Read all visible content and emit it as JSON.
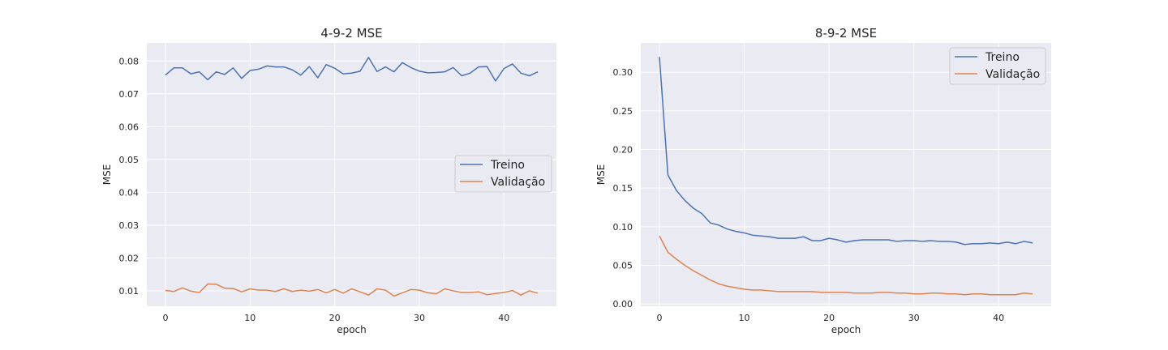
{
  "colors": {
    "panel_bg": "#EAEAF2",
    "grid": "#FFFFFF",
    "train": "#4C72B0",
    "val": "#DD8452",
    "legend_bg": "#EAEAF2",
    "legend_border": "#CCCCCC"
  },
  "chart_data": [
    {
      "type": "line",
      "title": "4-9-2 MSE",
      "xlabel": "epoch",
      "ylabel": "MSE",
      "xlim": [
        -2.2,
        46.2
      ],
      "ylim": [
        0.0053,
        0.0855
      ],
      "xticks": [
        0,
        10,
        20,
        30,
        40
      ],
      "yticks": [
        0.01,
        0.02,
        0.03,
        0.04,
        0.05,
        0.06,
        0.07,
        0.08
      ],
      "ytick_labels": [
        "0.01",
        "0.02",
        "0.03",
        "0.04",
        "0.05",
        "0.06",
        "0.07",
        "0.08"
      ],
      "grid": true,
      "legend": "center-right",
      "x": [
        0,
        1,
        2,
        3,
        4,
        5,
        6,
        7,
        8,
        9,
        10,
        11,
        12,
        13,
        14,
        15,
        16,
        17,
        18,
        19,
        20,
        21,
        22,
        23,
        24,
        25,
        26,
        27,
        28,
        29,
        30,
        31,
        32,
        33,
        34,
        35,
        36,
        37,
        38,
        39,
        40,
        41,
        42,
        43,
        44
      ],
      "series": [
        {
          "name": "Treino",
          "color": "#4C72B0",
          "values": [
            0.0757,
            0.0779,
            0.0779,
            0.0761,
            0.0767,
            0.0743,
            0.0767,
            0.0759,
            0.0779,
            0.0747,
            0.0771,
            0.0775,
            0.0785,
            0.0782,
            0.0782,
            0.0773,
            0.0757,
            0.0783,
            0.0749,
            0.0789,
            0.0778,
            0.0761,
            0.0763,
            0.0769,
            0.0811,
            0.0768,
            0.0782,
            0.0767,
            0.0795,
            0.078,
            0.0769,
            0.0764,
            0.0765,
            0.0767,
            0.078,
            0.0755,
            0.0763,
            0.0782,
            0.0783,
            0.0739,
            0.0777,
            0.0791,
            0.0763,
            0.0755,
            0.0767
          ]
        },
        {
          "name": "Validação",
          "color": "#DD8452",
          "values": [
            0.0101,
            0.0098,
            0.0109,
            0.0099,
            0.0095,
            0.0121,
            0.012,
            0.0108,
            0.0107,
            0.0097,
            0.0106,
            0.0102,
            0.0102,
            0.0098,
            0.0106,
            0.0098,
            0.0102,
            0.0099,
            0.0104,
            0.0094,
            0.0104,
            0.0093,
            0.0106,
            0.0097,
            0.0087,
            0.0106,
            0.0102,
            0.0084,
            0.0094,
            0.0104,
            0.0102,
            0.0094,
            0.0091,
            0.0106,
            0.01,
            0.0095,
            0.0095,
            0.0097,
            0.0088,
            0.0092,
            0.0095,
            0.0101,
            0.0087,
            0.01,
            0.0093
          ]
        }
      ]
    },
    {
      "type": "line",
      "title": "8-9-2 MSE",
      "xlabel": "epoch",
      "ylabel": "MSE",
      "xlim": [
        -2.2,
        46.2
      ],
      "ylim": [
        -0.003,
        0.338
      ],
      "xticks": [
        0,
        10,
        20,
        30,
        40
      ],
      "yticks": [
        0.0,
        0.05,
        0.1,
        0.15,
        0.2,
        0.25,
        0.3
      ],
      "ytick_labels": [
        "0.00",
        "0.05",
        "0.10",
        "0.15",
        "0.20",
        "0.25",
        "0.30"
      ],
      "grid": true,
      "legend": "upper-right",
      "x": [
        0,
        1,
        2,
        3,
        4,
        5,
        6,
        7,
        8,
        9,
        10,
        11,
        12,
        13,
        14,
        15,
        16,
        17,
        18,
        19,
        20,
        21,
        22,
        23,
        24,
        25,
        26,
        27,
        28,
        29,
        30,
        31,
        32,
        33,
        34,
        35,
        36,
        37,
        38,
        39,
        40,
        41,
        42,
        43,
        44
      ],
      "series": [
        {
          "name": "Treino",
          "color": "#4C72B0",
          "values": [
            0.32,
            0.167,
            0.147,
            0.134,
            0.124,
            0.117,
            0.105,
            0.102,
            0.097,
            0.094,
            0.092,
            0.089,
            0.088,
            0.087,
            0.085,
            0.085,
            0.085,
            0.087,
            0.082,
            0.082,
            0.085,
            0.083,
            0.08,
            0.082,
            0.083,
            0.083,
            0.083,
            0.083,
            0.081,
            0.082,
            0.082,
            0.081,
            0.082,
            0.081,
            0.081,
            0.08,
            0.077,
            0.078,
            0.078,
            0.079,
            0.078,
            0.08,
            0.078,
            0.081,
            0.079
          ]
        },
        {
          "name": "Validação",
          "color": "#DD8452",
          "values": [
            0.088,
            0.067,
            0.058,
            0.05,
            0.043,
            0.037,
            0.031,
            0.026,
            0.023,
            0.021,
            0.019,
            0.018,
            0.018,
            0.017,
            0.016,
            0.016,
            0.016,
            0.016,
            0.016,
            0.015,
            0.015,
            0.015,
            0.015,
            0.014,
            0.014,
            0.014,
            0.015,
            0.015,
            0.014,
            0.014,
            0.013,
            0.013,
            0.014,
            0.014,
            0.013,
            0.013,
            0.012,
            0.013,
            0.013,
            0.012,
            0.012,
            0.012,
            0.012,
            0.014,
            0.013
          ]
        }
      ]
    }
  ]
}
